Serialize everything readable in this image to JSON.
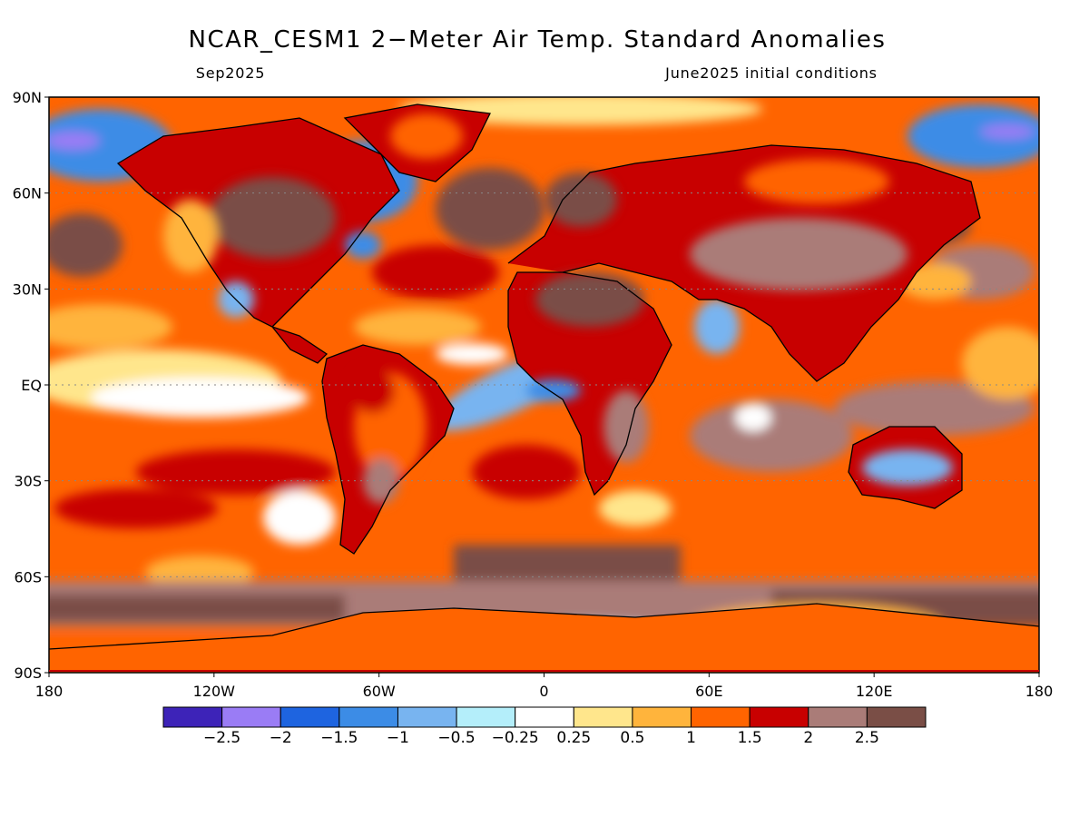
{
  "title": "NCAR_CESM1 2−Meter Air Temp. Standard Anomalies",
  "subtitle_left": "Sep2025",
  "subtitle_right": "June2025 initial conditions",
  "axes": {
    "x_ticks": [
      {
        "lon": -180,
        "label": "180"
      },
      {
        "lon": -120,
        "label": "120W"
      },
      {
        "lon": -60,
        "label": "60W"
      },
      {
        "lon": 0,
        "label": "0"
      },
      {
        "lon": 60,
        "label": "60E"
      },
      {
        "lon": 120,
        "label": "120E"
      },
      {
        "lon": 180,
        "label": "180"
      }
    ],
    "y_ticks": [
      {
        "lat": 90,
        "label": "90N"
      },
      {
        "lat": 60,
        "label": "60N"
      },
      {
        "lat": 30,
        "label": "30N"
      },
      {
        "lat": 0,
        "label": "EQ"
      },
      {
        "lat": -30,
        "label": "30S"
      },
      {
        "lat": -60,
        "label": "60S"
      },
      {
        "lat": -90,
        "label": "90S"
      }
    ],
    "lon_range": [
      -180,
      180
    ],
    "lat_range": [
      -90,
      90
    ],
    "grid_lines": "dotted at 30° latitude intervals"
  },
  "legend": {
    "colors": [
      "#3d23b8",
      "#9a7cf5",
      "#1e64e0",
      "#3c8ce6",
      "#78b4f0",
      "#b4eefa",
      "#ffffff",
      "#ffe68c",
      "#ffb43c",
      "#ff6400",
      "#c80000",
      "#aa7c78",
      "#7a4e46"
    ],
    "labels": [
      "−2.5",
      "−2",
      "−1.5",
      "−1",
      "−0.5",
      "−0.25",
      "0.25",
      "0.5",
      "1",
      "1.5",
      "2",
      "2.5"
    ]
  },
  "colors": {
    "ocean_base": "#ff6400",
    "land_base": "#c80000"
  }
}
